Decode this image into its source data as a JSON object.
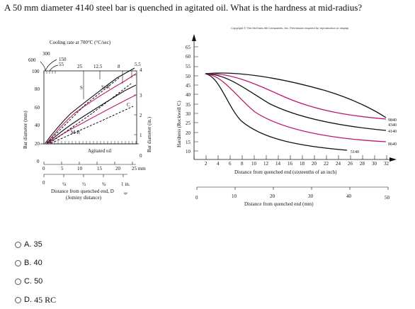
{
  "question": "A 50 mm diameter 4140 steel bar is quenched in agitated oil.  What is the hardness at mid-radius?",
  "copyright": "Copyright © The McGraw-Hill Companies, Inc. Permission required for reproduction or display",
  "left_chart": {
    "cooling_rate_title": "Cooling rate at 700°C (°C/sec)",
    "cooling_rate_ticks": [
      "300",
      "150",
      "55",
      "25",
      "12.5",
      "8",
      "5.5"
    ],
    "y_label_left": "Bar diameter (mm)",
    "y_ticks_left": [
      "600",
      "100",
      "80",
      "60",
      "40",
      "20",
      "0"
    ],
    "y_label_right": "Bar diameter (in.)",
    "y_ticks_right": [
      "4",
      "3",
      "2",
      "1",
      "0"
    ],
    "x_ticks_mm": [
      "0",
      "5",
      "10",
      "15",
      "20",
      "25 mm"
    ],
    "x_ticks_in": [
      "0",
      "¼",
      "½",
      "¾",
      "1 in."
    ],
    "x_label": "Distance from quenched end, D",
    "x_label_sub": "qe",
    "x_label_paren": "(Jominy distance)",
    "region_labels": [
      "S",
      "¾-R",
      "C",
      "M-R"
    ],
    "annotation": "Agitated oil"
  },
  "right_chart": {
    "y_label": "Hardness (Rockwell C)",
    "y_ticks": [
      "65",
      "60",
      "55",
      "50",
      "45",
      "40",
      "35",
      "30",
      "25",
      "20",
      "15",
      "10"
    ],
    "x_ticks_top": [
      "2",
      "4",
      "6",
      "8",
      "10",
      "12",
      "14",
      "16",
      "18",
      "20",
      "22",
      "24",
      "26",
      "28",
      "30",
      "32"
    ],
    "x_label_top": "Distance from quenched end (sixteenths of an inch)",
    "x_ticks_bottom": [
      "0",
      "10",
      "20",
      "30",
      "40",
      "50"
    ],
    "x_label_bottom": "Distance from quenched end (mm)",
    "curve_labels": [
      "4340",
      "9840",
      "4140",
      "8640",
      "5140"
    ]
  },
  "options": [
    {
      "letter": "A.",
      "value": "35"
    },
    {
      "letter": "B.",
      "value": "40"
    },
    {
      "letter": "C.",
      "value": "50"
    },
    {
      "letter": "D.",
      "value": "45 RC"
    }
  ]
}
